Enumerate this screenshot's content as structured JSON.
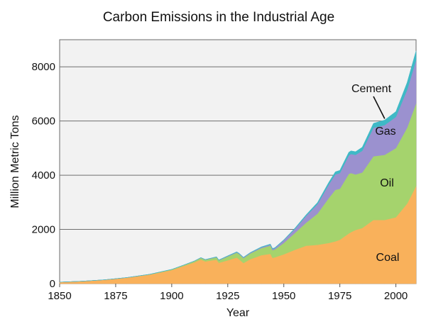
{
  "chart_data": {
    "type": "area",
    "stacked": true,
    "title": "Carbon Emissions in the Industrial Age",
    "xlabel": "Year",
    "ylabel": "Million Metric Tons",
    "xlim": [
      1850,
      2009
    ],
    "ylim": [
      0,
      9000
    ],
    "x_ticks": [
      1850,
      1875,
      1900,
      1925,
      1950,
      1975,
      2000
    ],
    "y_ticks": [
      0,
      2000,
      4000,
      6000,
      8000
    ],
    "grid": true,
    "x": [
      1850,
      1860,
      1870,
      1880,
      1890,
      1900,
      1905,
      1910,
      1913,
      1915,
      1918,
      1920,
      1921,
      1925,
      1929,
      1930,
      1932,
      1935,
      1940,
      1944,
      1945,
      1946,
      1950,
      1955,
      1960,
      1965,
      1970,
      1973,
      1975,
      1979,
      1980,
      1982,
      1985,
      1990,
      1995,
      2000,
      2005,
      2009
    ],
    "series": [
      {
        "name": "Coal",
        "color": "#f9b15b",
        "values": [
          54,
          90,
          140,
          220,
          330,
          500,
          640,
          780,
          890,
          820,
          860,
          880,
          770,
          860,
          960,
          900,
          760,
          900,
          1050,
          1100,
          950,
          970,
          1080,
          1250,
          1400,
          1430,
          1500,
          1560,
          1620,
          1850,
          1900,
          1980,
          2050,
          2350,
          2350,
          2450,
          2950,
          3600
        ]
      },
      {
        "name": "Oil",
        "color": "#a5d36d",
        "values": [
          0,
          0,
          1,
          3,
          10,
          23,
          30,
          45,
          60,
          60,
          75,
          90,
          85,
          140,
          180,
          190,
          180,
          210,
          260,
          300,
          280,
          290,
          420,
          620,
          850,
          1150,
          1650,
          1900,
          1880,
          2200,
          2180,
          2050,
          2050,
          2350,
          2400,
          2550,
          2800,
          3050
        ]
      },
      {
        "name": "Gas",
        "color": "#9b91cf",
        "values": [
          0,
          0,
          0,
          1,
          2,
          3,
          4,
          6,
          8,
          8,
          10,
          12,
          12,
          15,
          20,
          20,
          20,
          22,
          30,
          40,
          45,
          45,
          100,
          150,
          250,
          350,
          500,
          570,
          580,
          680,
          700,
          720,
          800,
          1050,
          1100,
          1150,
          1400,
          1600
        ]
      },
      {
        "name": "Cement",
        "color": "#3fb9c6",
        "values": [
          0,
          0,
          0,
          0,
          0,
          0,
          0,
          0,
          5,
          5,
          8,
          10,
          10,
          12,
          15,
          15,
          14,
          15,
          18,
          20,
          22,
          22,
          18,
          30,
          45,
          60,
          80,
          95,
          100,
          120,
          120,
          120,
          135,
          165,
          185,
          200,
          270,
          340
        ]
      }
    ]
  }
}
